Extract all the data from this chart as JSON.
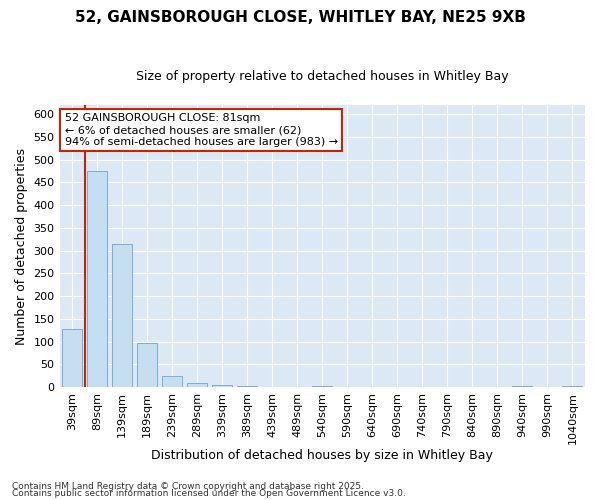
{
  "title_line1": "52, GAINSBOROUGH CLOSE, WHITLEY BAY, NE25 9XB",
  "title_line2": "Size of property relative to detached houses in Whitley Bay",
  "xlabel": "Distribution of detached houses by size in Whitley Bay",
  "ylabel": "Number of detached properties",
  "categories": [
    "39sqm",
    "89sqm",
    "139sqm",
    "189sqm",
    "239sqm",
    "289sqm",
    "339sqm",
    "389sqm",
    "439sqm",
    "489sqm",
    "540sqm",
    "590sqm",
    "640sqm",
    "690sqm",
    "740sqm",
    "790sqm",
    "840sqm",
    "890sqm",
    "940sqm",
    "990sqm",
    "1040sqm"
  ],
  "values": [
    128,
    476,
    314,
    98,
    25,
    10,
    4,
    2,
    0,
    0,
    3,
    0,
    0,
    0,
    0,
    0,
    0,
    0,
    3,
    0,
    3
  ],
  "bar_color": "#c5dff0",
  "bar_edge_color": "#7aaed4",
  "vline_position": 0.5,
  "vline_color": "#cc2200",
  "annotation_text": "52 GAINSBOROUGH CLOSE: 81sqm\n← 6% of detached houses are smaller (62)\n94% of semi-detached houses are larger (983) →",
  "annotation_box_facecolor": "#ffffff",
  "annotation_box_edgecolor": "#cc2200",
  "ylim": [
    0,
    620
  ],
  "yticks": [
    0,
    50,
    100,
    150,
    200,
    250,
    300,
    350,
    400,
    450,
    500,
    550,
    600
  ],
  "footnote1": "Contains HM Land Registry data © Crown copyright and database right 2025.",
  "footnote2": "Contains public sector information licensed under the Open Government Licence v3.0.",
  "fig_bg_color": "#ffffff",
  "plot_bg_color": "#dce8f5",
  "grid_color": "#ffffff",
  "title1_fontsize": 11,
  "title2_fontsize": 9,
  "xlabel_fontsize": 9,
  "ylabel_fontsize": 9,
  "tick_fontsize": 8,
  "annot_fontsize": 8,
  "footnote_fontsize": 6.5
}
